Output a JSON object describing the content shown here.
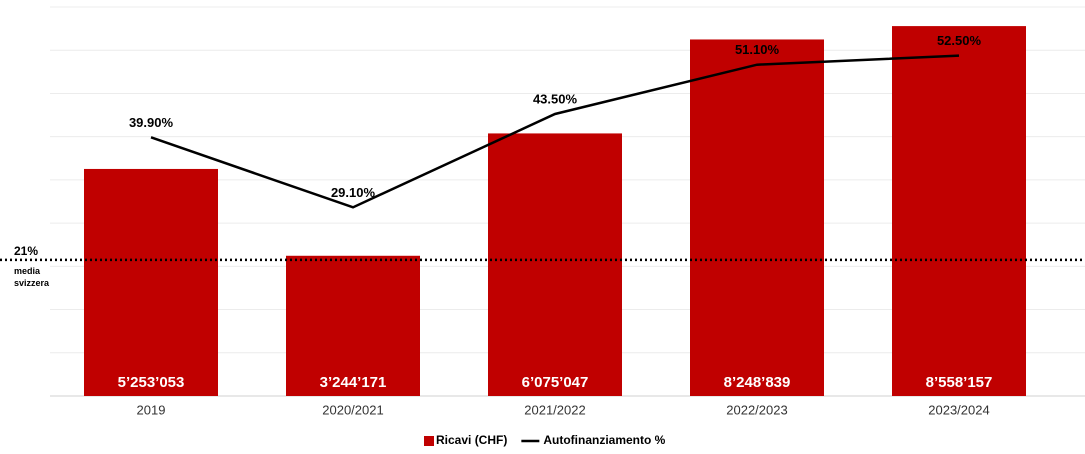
{
  "chart_data": {
    "type": "bar_line",
    "categories": [
      "2019",
      "2020/2021",
      "2021/2022",
      "2022/2023",
      "2023/2024"
    ],
    "series": [
      {
        "name": "Ricavi (CHF)",
        "color": "#c00000",
        "type": "bar",
        "values": [
          5253053,
          3244171,
          6075047,
          8248839,
          8558157
        ],
        "value_labels": [
          "5’253’053",
          "3’244’171",
          "6’075’047",
          "8’248’839",
          "8’558’157"
        ]
      },
      {
        "name": "Autofinanziamento %",
        "color": "#000000",
        "type": "line",
        "axis": "y2",
        "values": [
          39.9,
          29.1,
          43.5,
          51.1,
          52.5
        ],
        "value_labels": [
          "39.90%",
          "29.10%",
          "43.50%",
          "51.10%",
          "52.50%"
        ]
      }
    ],
    "ylim": [
      0,
      9000000
    ],
    "yticks": [
      0,
      1000000,
      2000000,
      3000000,
      4000000,
      5000000,
      6000000,
      7000000,
      8000000,
      9000000
    ],
    "y2lim": [
      0,
      60
    ],
    "grid": true,
    "reference_line": {
      "value": 21,
      "axis": "y2",
      "label": "21%",
      "note": [
        "media",
        "svizzera"
      ]
    }
  }
}
